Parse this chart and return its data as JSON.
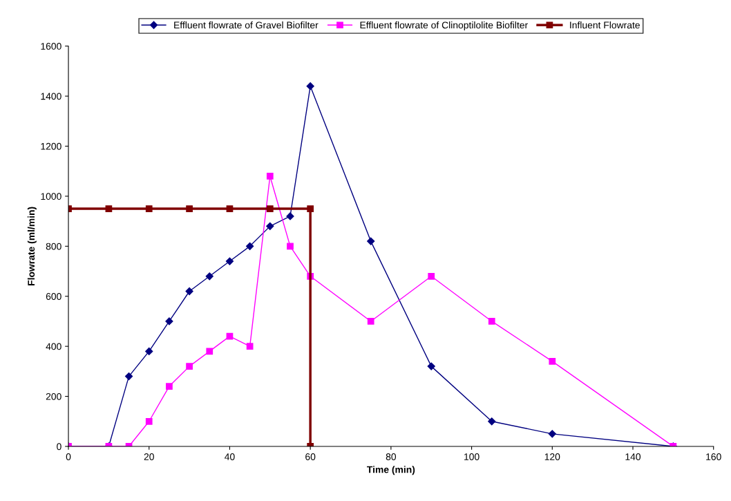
{
  "chart_data": {
    "type": "line",
    "xlabel": "Time (min)",
    "ylabel": "Flowrate (ml/min)",
    "xlim": [
      0,
      160
    ],
    "xticks": [
      0,
      20,
      40,
      60,
      80,
      100,
      120,
      140,
      160
    ],
    "ylim": [
      0,
      1600
    ],
    "yticks": [
      0,
      200,
      400,
      600,
      800,
      1000,
      1200,
      1400,
      1600
    ],
    "grid": false,
    "legend": "top",
    "line_style": "solid",
    "series": [
      {
        "name": "Effluent flowrate of Gravel Biofilter",
        "color": "#000080",
        "marker": "diamond",
        "x": [
          0,
          10,
          15,
          20,
          25,
          30,
          35,
          40,
          45,
          50,
          55,
          60,
          75,
          90,
          105,
          120,
          150
        ],
        "values": [
          0,
          0,
          280,
          380,
          500,
          620,
          680,
          740,
          800,
          880,
          920,
          1440,
          820,
          320,
          100,
          50,
          0
        ]
      },
      {
        "name": "Effluent flowrate of Clinoptilolite Biofilter",
        "color": "#ff00ff",
        "marker": "square",
        "x": [
          0,
          10,
          15,
          20,
          25,
          30,
          35,
          40,
          45,
          50,
          55,
          60,
          75,
          90,
          105,
          120,
          150
        ],
        "values": [
          0,
          0,
          0,
          100,
          240,
          320,
          380,
          440,
          400,
          1080,
          800,
          680,
          500,
          680,
          500,
          340,
          0
        ]
      },
      {
        "name": "Influent Flowrate",
        "color": "#800000",
        "marker": "square",
        "x": [
          0,
          10,
          20,
          30,
          40,
          50,
          60,
          60
        ],
        "values": [
          950,
          950,
          950,
          950,
          950,
          950,
          950,
          0
        ]
      }
    ]
  }
}
